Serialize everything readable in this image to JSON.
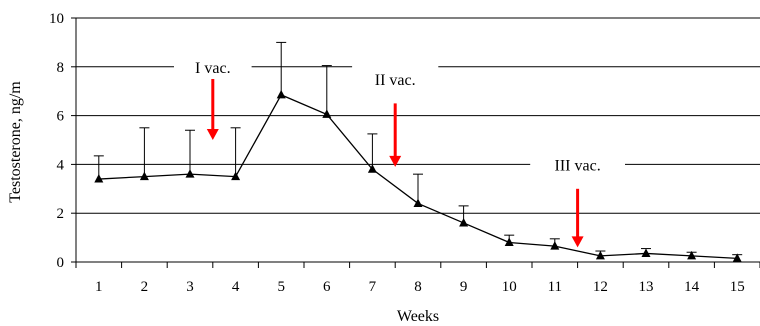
{
  "chart_data": {
    "type": "line",
    "title": "",
    "xlabel": "Weeks",
    "ylabel": "Testosterone, ng/m",
    "x": [
      1,
      2,
      3,
      4,
      5,
      6,
      7,
      8,
      9,
      10,
      11,
      12,
      13,
      14,
      15
    ],
    "series": [
      {
        "values": [
          3.4,
          3.5,
          3.6,
          3.5,
          6.85,
          6.05,
          3.8,
          2.4,
          1.6,
          0.8,
          0.65,
          0.25,
          0.35,
          0.25,
          0.15
        ],
        "error_upper": [
          4.35,
          5.5,
          5.4,
          5.5,
          9.0,
          8.05,
          5.25,
          3.6,
          2.3,
          1.1,
          0.95,
          0.45,
          0.55,
          0.4,
          0.3
        ],
        "marker": "triangle",
        "color": "#000000"
      }
    ],
    "xlim": [
      0.5,
      15.5
    ],
    "ylim": [
      0,
      10
    ],
    "yticks": [
      0,
      2,
      4,
      6,
      8,
      10
    ],
    "grid": "horizontal",
    "annotations": [
      {
        "text": "I vac.",
        "arrow_x": 3.5,
        "arrow_from_y": 7.5,
        "arrow_to_y": 5.0,
        "arrow_color": "#ff0000"
      },
      {
        "text": "II vac.",
        "arrow_x": 7.5,
        "arrow_from_y": 6.5,
        "arrow_to_y": 3.9,
        "arrow_color": "#ff0000"
      },
      {
        "text": "III vac.",
        "arrow_x": 11.5,
        "arrow_from_y": 3.0,
        "arrow_to_y": 0.6,
        "arrow_color": "#ff0000"
      }
    ]
  }
}
